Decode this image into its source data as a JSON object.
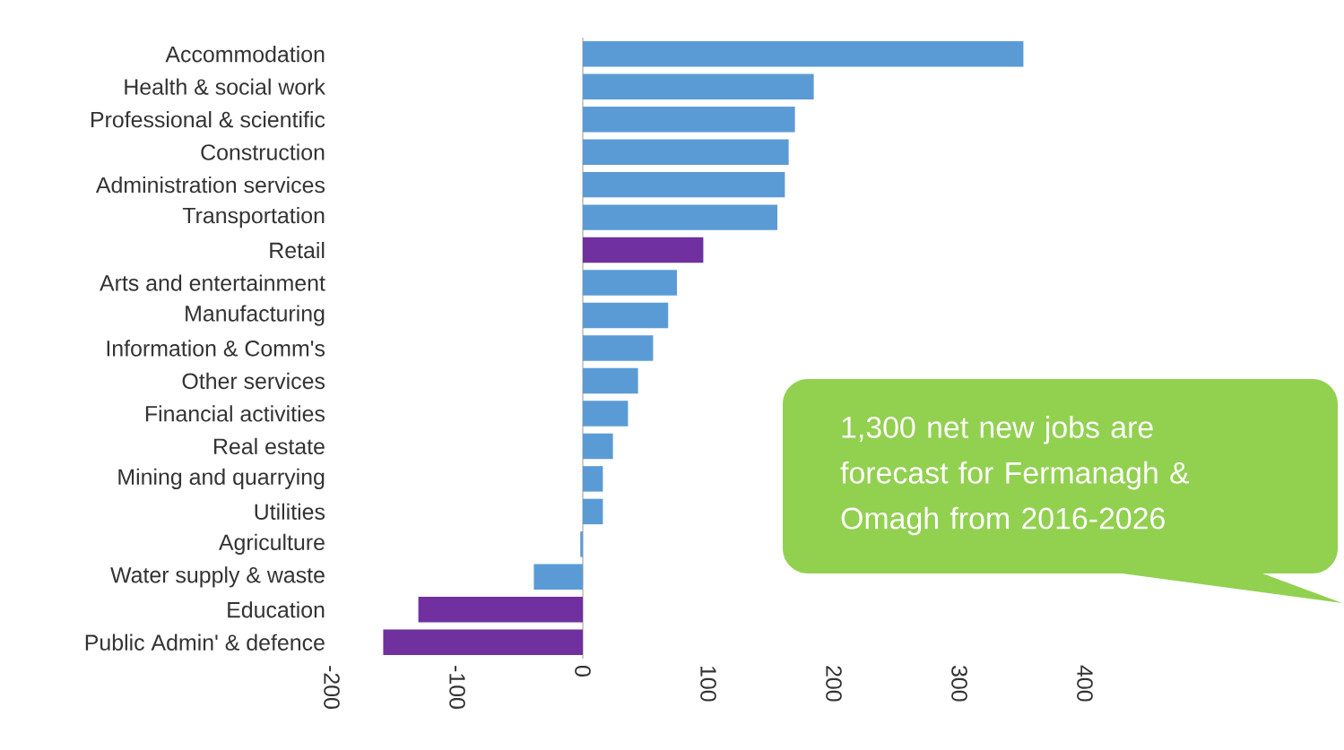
{
  "chart_data": {
    "type": "bar",
    "orientation": "horizontal",
    "categories": [
      "Accommodation",
      "Health & social work",
      "Professional & scientific",
      "Construction",
      "Administration services",
      "Transportation",
      "Retail",
      "Arts and entertainment",
      "Manufacturing",
      "Information & Comm's",
      "Other services",
      "Financial activities",
      "Real estate",
      "Mining and quarrying",
      "Utilities",
      "Agriculture",
      "Water supply & waste",
      "Education",
      "Public Admin' & defence"
    ],
    "values": [
      351,
      184,
      169,
      164,
      161,
      155,
      96,
      75,
      68,
      56,
      44,
      36,
      24,
      16,
      16,
      -2,
      -39,
      -131,
      -159
    ],
    "colors": [
      "#5b9bd5",
      "#5b9bd5",
      "#5b9bd5",
      "#5b9bd5",
      "#5b9bd5",
      "#5b9bd5",
      "#7030a0",
      "#5b9bd5",
      "#5b9bd5",
      "#5b9bd5",
      "#5b9bd5",
      "#5b9bd5",
      "#5b9bd5",
      "#5b9bd5",
      "#5b9bd5",
      "#5b9bd5",
      "#5b9bd5",
      "#7030a0",
      "#7030a0"
    ],
    "xlim": [
      -200,
      400
    ],
    "xticks": [
      -200,
      -100,
      0,
      100,
      200,
      300,
      400
    ],
    "annotations": [
      "1,300 net new jobs are forecast for Fermanagh & Omagh from 2016-2026"
    ]
  }
}
